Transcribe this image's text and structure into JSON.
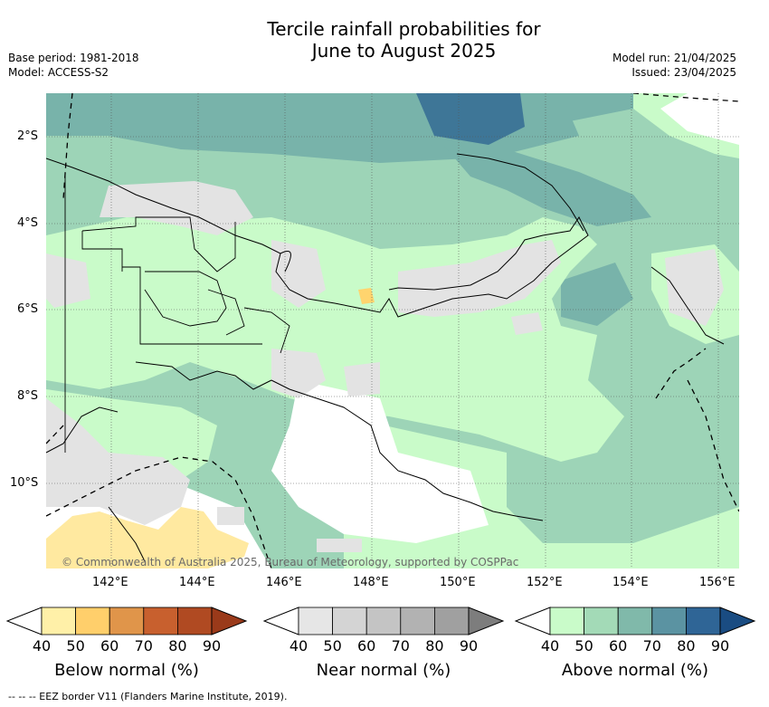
{
  "title_line1": "Tercile rainfall probabilities for",
  "title_line2": "June to August 2025",
  "base_period": "Base period: 1981-2018",
  "model": "Model: ACCESS-S2",
  "model_run": "Model run: 21/04/2025",
  "issued": "Issued: 23/04/2025",
  "copyright": "© Commonwealth of Australia 2025, Bureau of Meteorology, supported by COSPPac",
  "footnote": "-- -- -- EEZ border V11 (Flanders Marine Institute, 2019).",
  "lat_labels": [
    "2°S",
    "4°S",
    "6°S",
    "8°S",
    "10°S"
  ],
  "lon_labels": [
    "142°E",
    "144°E",
    "146°E",
    "148°E",
    "150°E",
    "152°E",
    "154°E",
    "156°E"
  ],
  "colorbars": [
    {
      "title": "Below normal (%)",
      "ticks": [
        "40",
        "50",
        "60",
        "70",
        "80",
        "90"
      ],
      "colors": [
        "#fff0a8",
        "#ffcf6b",
        "#e0954a",
        "#c8602e",
        "#b04a22",
        "#9a3a1a"
      ]
    },
    {
      "title": "Near normal (%)",
      "ticks": [
        "40",
        "50",
        "60",
        "70",
        "80",
        "90"
      ],
      "colors": [
        "#e6e6e6",
        "#d4d4d4",
        "#c4c4c4",
        "#b2b2b2",
        "#a0a0a0",
        "#7d7d7d"
      ]
    },
    {
      "title": "Above normal (%)",
      "ticks": [
        "40",
        "50",
        "60",
        "70",
        "80",
        "90"
      ],
      "colors": [
        "#c9fbc9",
        "#a3dab7",
        "#80b9aa",
        "#5b93a2",
        "#2f6596",
        "#1a4c82"
      ]
    }
  ],
  "colors": {
    "below_40": "#ffe9a0",
    "below_50": "#ffd46e",
    "near_40": "#e3e3e3",
    "near_50": "#d6d6d6",
    "above_40": "#c9fbc9",
    "above_50": "#9dd4b7",
    "above_60": "#78b3aa",
    "above_70": "#3e7697",
    "no_signal": "#ffffff"
  }
}
